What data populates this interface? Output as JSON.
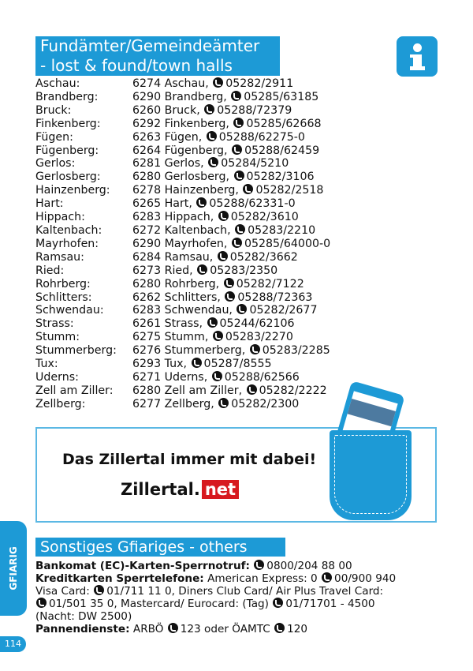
{
  "header": {
    "title_line1": "Fundämter/Gemeindeämter",
    "title_line2": "- lost & found/town halls",
    "info_icon": "info-icon"
  },
  "accent_color": "#1d9ad6",
  "town_halls": [
    {
      "name": "Aschau:",
      "address": "6274 Aschau,",
      "phone": "05282/2911"
    },
    {
      "name": "Brandberg:",
      "address": "6290 Brandberg,",
      "phone": "05285/63185"
    },
    {
      "name": "Bruck:",
      "address": "6260 Bruck,",
      "phone": "05288/72379"
    },
    {
      "name": "Finkenberg:",
      "address": "6292 Finkenberg,",
      "phone": "05285/62668"
    },
    {
      "name": "Fügen:",
      "address": "6263 Fügen,",
      "phone": "05288/62275-0"
    },
    {
      "name": "Fügenberg:",
      "address": "6264 Fügenberg,",
      "phone": "05288/62459"
    },
    {
      "name": "Gerlos:",
      "address": "6281 Gerlos,",
      "phone": "05284/5210"
    },
    {
      "name": "Gerlosberg:",
      "address": "6280 Gerlosberg,",
      "phone": "05282/3106"
    },
    {
      "name": "Hainzenberg:",
      "address": "6278 Hainzenberg,",
      "phone": "05282/2518"
    },
    {
      "name": "Hart:",
      "address": "6265 Hart,",
      "phone": "05288/62331-0"
    },
    {
      "name": "Hippach:",
      "address": "6283 Hippach,",
      "phone": "05282/3610"
    },
    {
      "name": "Kaltenbach:",
      "address": "6272 Kaltenbach,",
      "phone": "05283/2210"
    },
    {
      "name": "Mayrhofen:",
      "address": "6290 Mayrhofen,",
      "phone": "05285/64000-0"
    },
    {
      "name": "Ramsau:",
      "address": "6284 Ramsau,",
      "phone": "05282/3662"
    },
    {
      "name": "Ried:",
      "address": "6273 Ried,",
      "phone": "05283/2350"
    },
    {
      "name": "Rohrberg:",
      "address": "6280 Rohrberg,",
      "phone": "05282/7122"
    },
    {
      "name": "Schlitters:",
      "address": "6262 Schlitters,",
      "phone": "05288/72363"
    },
    {
      "name": "Schwendau:",
      "address": "6283 Schwendau,",
      "phone": "05282/2677"
    },
    {
      "name": "Strass:",
      "address": "6261 Strass,",
      "phone": "05244/62106"
    },
    {
      "name": "Stumm:",
      "address": "6275 Stumm,",
      "phone": "05283/2270"
    },
    {
      "name": "Stummerberg:",
      "address": "6276 Stummerberg,",
      "phone": "05283/2285"
    },
    {
      "name": "Tux:",
      "address": "6293 Tux,",
      "phone": "05287/8555"
    },
    {
      "name": "Uderns:",
      "address": "6271 Uderns,",
      "phone": "05288/62566"
    },
    {
      "name": "Zell am Ziller:",
      "address": "6280 Zell am Ziller,",
      "phone": "05282/2222"
    },
    {
      "name": "Zellberg:",
      "address": "6277 Zellberg,",
      "phone": "05282/2300"
    }
  ],
  "banner": {
    "slogan": "Das Zillertal immer mit dabei!",
    "logo_main": "Zillertal.",
    "logo_net": "net",
    "logo_net_color": "#d7191f"
  },
  "others": {
    "title": "Sonstiges Gfiariges - others",
    "bankomat_label": "Bankomat (EC)-Karten-Sperrnotruf:",
    "bankomat_phone": "0800/204 88 00",
    "credit_label": "Kreditkarten Sperrtelefone:",
    "amex": "American Express: 0",
    "amex_phone": "00/900 940",
    "visa": "Visa Card:",
    "visa_phone": "01/711 11 0, Diners Club Card/ Air Plus Travel Card:",
    "diners_phone": "01/501 35 0, Mastercard/ Eurocard: (Tag)",
    "master_phone": "01/71701 - 4500",
    "night": "(Nacht: DW 2500)",
    "breakdown_label": "Pannendienste:",
    "arbo": "ARBÖ",
    "arbo_phone": "123 oder ÖAMTC",
    "oamtc_phone": "120"
  },
  "side_tab": "GFIARIG",
  "page_number": "114"
}
